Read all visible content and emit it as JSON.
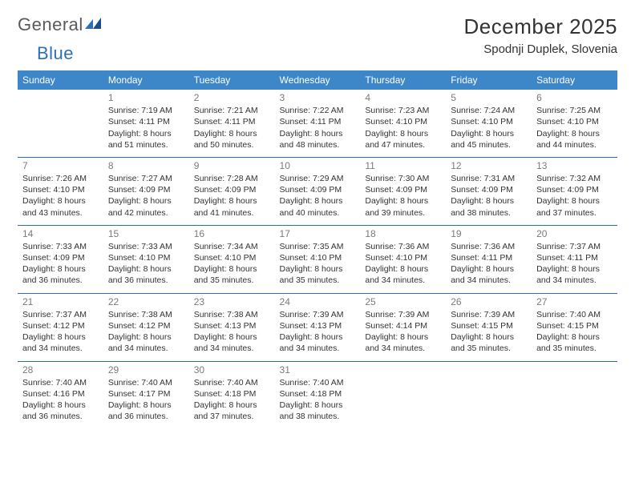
{
  "brand": {
    "part1": "General",
    "part2": "Blue"
  },
  "title": "December 2025",
  "location": "Spodnji Duplek, Slovenia",
  "colors": {
    "header_bg": "#3d87c9",
    "rule": "#2d6fb4",
    "text": "#333333",
    "daynum": "#7a7a7a",
    "brand_gray": "#5a5a5a",
    "brand_blue": "#2d6fb4"
  },
  "dow": [
    "Sunday",
    "Monday",
    "Tuesday",
    "Wednesday",
    "Thursday",
    "Friday",
    "Saturday"
  ],
  "weeks": [
    [
      null,
      {
        "n": "1",
        "sunrise": "7:19 AM",
        "sunset": "4:11 PM",
        "dl1": "Daylight: 8 hours",
        "dl2": "and 51 minutes."
      },
      {
        "n": "2",
        "sunrise": "7:21 AM",
        "sunset": "4:11 PM",
        "dl1": "Daylight: 8 hours",
        "dl2": "and 50 minutes."
      },
      {
        "n": "3",
        "sunrise": "7:22 AM",
        "sunset": "4:11 PM",
        "dl1": "Daylight: 8 hours",
        "dl2": "and 48 minutes."
      },
      {
        "n": "4",
        "sunrise": "7:23 AM",
        "sunset": "4:10 PM",
        "dl1": "Daylight: 8 hours",
        "dl2": "and 47 minutes."
      },
      {
        "n": "5",
        "sunrise": "7:24 AM",
        "sunset": "4:10 PM",
        "dl1": "Daylight: 8 hours",
        "dl2": "and 45 minutes."
      },
      {
        "n": "6",
        "sunrise": "7:25 AM",
        "sunset": "4:10 PM",
        "dl1": "Daylight: 8 hours",
        "dl2": "and 44 minutes."
      }
    ],
    [
      {
        "n": "7",
        "sunrise": "7:26 AM",
        "sunset": "4:10 PM",
        "dl1": "Daylight: 8 hours",
        "dl2": "and 43 minutes."
      },
      {
        "n": "8",
        "sunrise": "7:27 AM",
        "sunset": "4:09 PM",
        "dl1": "Daylight: 8 hours",
        "dl2": "and 42 minutes."
      },
      {
        "n": "9",
        "sunrise": "7:28 AM",
        "sunset": "4:09 PM",
        "dl1": "Daylight: 8 hours",
        "dl2": "and 41 minutes."
      },
      {
        "n": "10",
        "sunrise": "7:29 AM",
        "sunset": "4:09 PM",
        "dl1": "Daylight: 8 hours",
        "dl2": "and 40 minutes."
      },
      {
        "n": "11",
        "sunrise": "7:30 AM",
        "sunset": "4:09 PM",
        "dl1": "Daylight: 8 hours",
        "dl2": "and 39 minutes."
      },
      {
        "n": "12",
        "sunrise": "7:31 AM",
        "sunset": "4:09 PM",
        "dl1": "Daylight: 8 hours",
        "dl2": "and 38 minutes."
      },
      {
        "n": "13",
        "sunrise": "7:32 AM",
        "sunset": "4:09 PM",
        "dl1": "Daylight: 8 hours",
        "dl2": "and 37 minutes."
      }
    ],
    [
      {
        "n": "14",
        "sunrise": "7:33 AM",
        "sunset": "4:09 PM",
        "dl1": "Daylight: 8 hours",
        "dl2": "and 36 minutes."
      },
      {
        "n": "15",
        "sunrise": "7:33 AM",
        "sunset": "4:10 PM",
        "dl1": "Daylight: 8 hours",
        "dl2": "and 36 minutes."
      },
      {
        "n": "16",
        "sunrise": "7:34 AM",
        "sunset": "4:10 PM",
        "dl1": "Daylight: 8 hours",
        "dl2": "and 35 minutes."
      },
      {
        "n": "17",
        "sunrise": "7:35 AM",
        "sunset": "4:10 PM",
        "dl1": "Daylight: 8 hours",
        "dl2": "and 35 minutes."
      },
      {
        "n": "18",
        "sunrise": "7:36 AM",
        "sunset": "4:10 PM",
        "dl1": "Daylight: 8 hours",
        "dl2": "and 34 minutes."
      },
      {
        "n": "19",
        "sunrise": "7:36 AM",
        "sunset": "4:11 PM",
        "dl1": "Daylight: 8 hours",
        "dl2": "and 34 minutes."
      },
      {
        "n": "20",
        "sunrise": "7:37 AM",
        "sunset": "4:11 PM",
        "dl1": "Daylight: 8 hours",
        "dl2": "and 34 minutes."
      }
    ],
    [
      {
        "n": "21",
        "sunrise": "7:37 AM",
        "sunset": "4:12 PM",
        "dl1": "Daylight: 8 hours",
        "dl2": "and 34 minutes."
      },
      {
        "n": "22",
        "sunrise": "7:38 AM",
        "sunset": "4:12 PM",
        "dl1": "Daylight: 8 hours",
        "dl2": "and 34 minutes."
      },
      {
        "n": "23",
        "sunrise": "7:38 AM",
        "sunset": "4:13 PM",
        "dl1": "Daylight: 8 hours",
        "dl2": "and 34 minutes."
      },
      {
        "n": "24",
        "sunrise": "7:39 AM",
        "sunset": "4:13 PM",
        "dl1": "Daylight: 8 hours",
        "dl2": "and 34 minutes."
      },
      {
        "n": "25",
        "sunrise": "7:39 AM",
        "sunset": "4:14 PM",
        "dl1": "Daylight: 8 hours",
        "dl2": "and 34 minutes."
      },
      {
        "n": "26",
        "sunrise": "7:39 AM",
        "sunset": "4:15 PM",
        "dl1": "Daylight: 8 hours",
        "dl2": "and 35 minutes."
      },
      {
        "n": "27",
        "sunrise": "7:40 AM",
        "sunset": "4:15 PM",
        "dl1": "Daylight: 8 hours",
        "dl2": "and 35 minutes."
      }
    ],
    [
      {
        "n": "28",
        "sunrise": "7:40 AM",
        "sunset": "4:16 PM",
        "dl1": "Daylight: 8 hours",
        "dl2": "and 36 minutes."
      },
      {
        "n": "29",
        "sunrise": "7:40 AM",
        "sunset": "4:17 PM",
        "dl1": "Daylight: 8 hours",
        "dl2": "and 36 minutes."
      },
      {
        "n": "30",
        "sunrise": "7:40 AM",
        "sunset": "4:18 PM",
        "dl1": "Daylight: 8 hours",
        "dl2": "and 37 minutes."
      },
      {
        "n": "31",
        "sunrise": "7:40 AM",
        "sunset": "4:18 PM",
        "dl1": "Daylight: 8 hours",
        "dl2": "and 38 minutes."
      },
      null,
      null,
      null
    ]
  ],
  "labels": {
    "sunrise": "Sunrise: ",
    "sunset": "Sunset: "
  }
}
